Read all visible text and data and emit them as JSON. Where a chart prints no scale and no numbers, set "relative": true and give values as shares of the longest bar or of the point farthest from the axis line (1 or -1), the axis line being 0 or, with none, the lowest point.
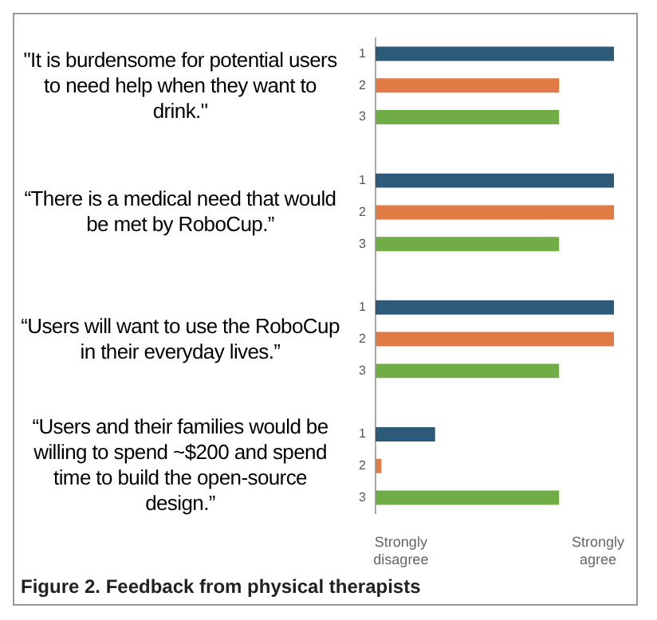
{
  "chart_data": {
    "type": "bar",
    "orientation": "horizontal",
    "relative": true,
    "categories": [
      "1",
      "2",
      "3",
      null,
      "1",
      "2",
      "3",
      null,
      "1",
      "2",
      "3",
      null,
      "1",
      "2",
      "3"
    ],
    "values": [
      1,
      0.77,
      0.77,
      null,
      1,
      1,
      0.77,
      null,
      1,
      1,
      0.77,
      null,
      0.25,
      0.025,
      0.77
    ],
    "colors": [
      "#2e5a7a",
      "#e07b45",
      "#70ad47",
      null,
      "#2e5a7a",
      "#e07b45",
      "#70ad47",
      null,
      "#2e5a7a",
      "#e07b45",
      "#70ad47",
      null,
      "#2e5a7a",
      "#e07b45",
      "#70ad47"
    ],
    "grid": false,
    "legend": false,
    "annotations": [
      "\"It is burdensome for potential users to need help when they want to drink.\"",
      "“There is a medical need that would be met by RoboCup.”",
      "“Users will want to use the RoboCup in their everyday lives.”",
      "“Users and their families would be willing to spend ~$200 and spend time to build the open-source design.”",
      "Strongly disagree",
      "Strongly agree",
      "Figure 2. Feedback from physical therapists"
    ]
  }
}
